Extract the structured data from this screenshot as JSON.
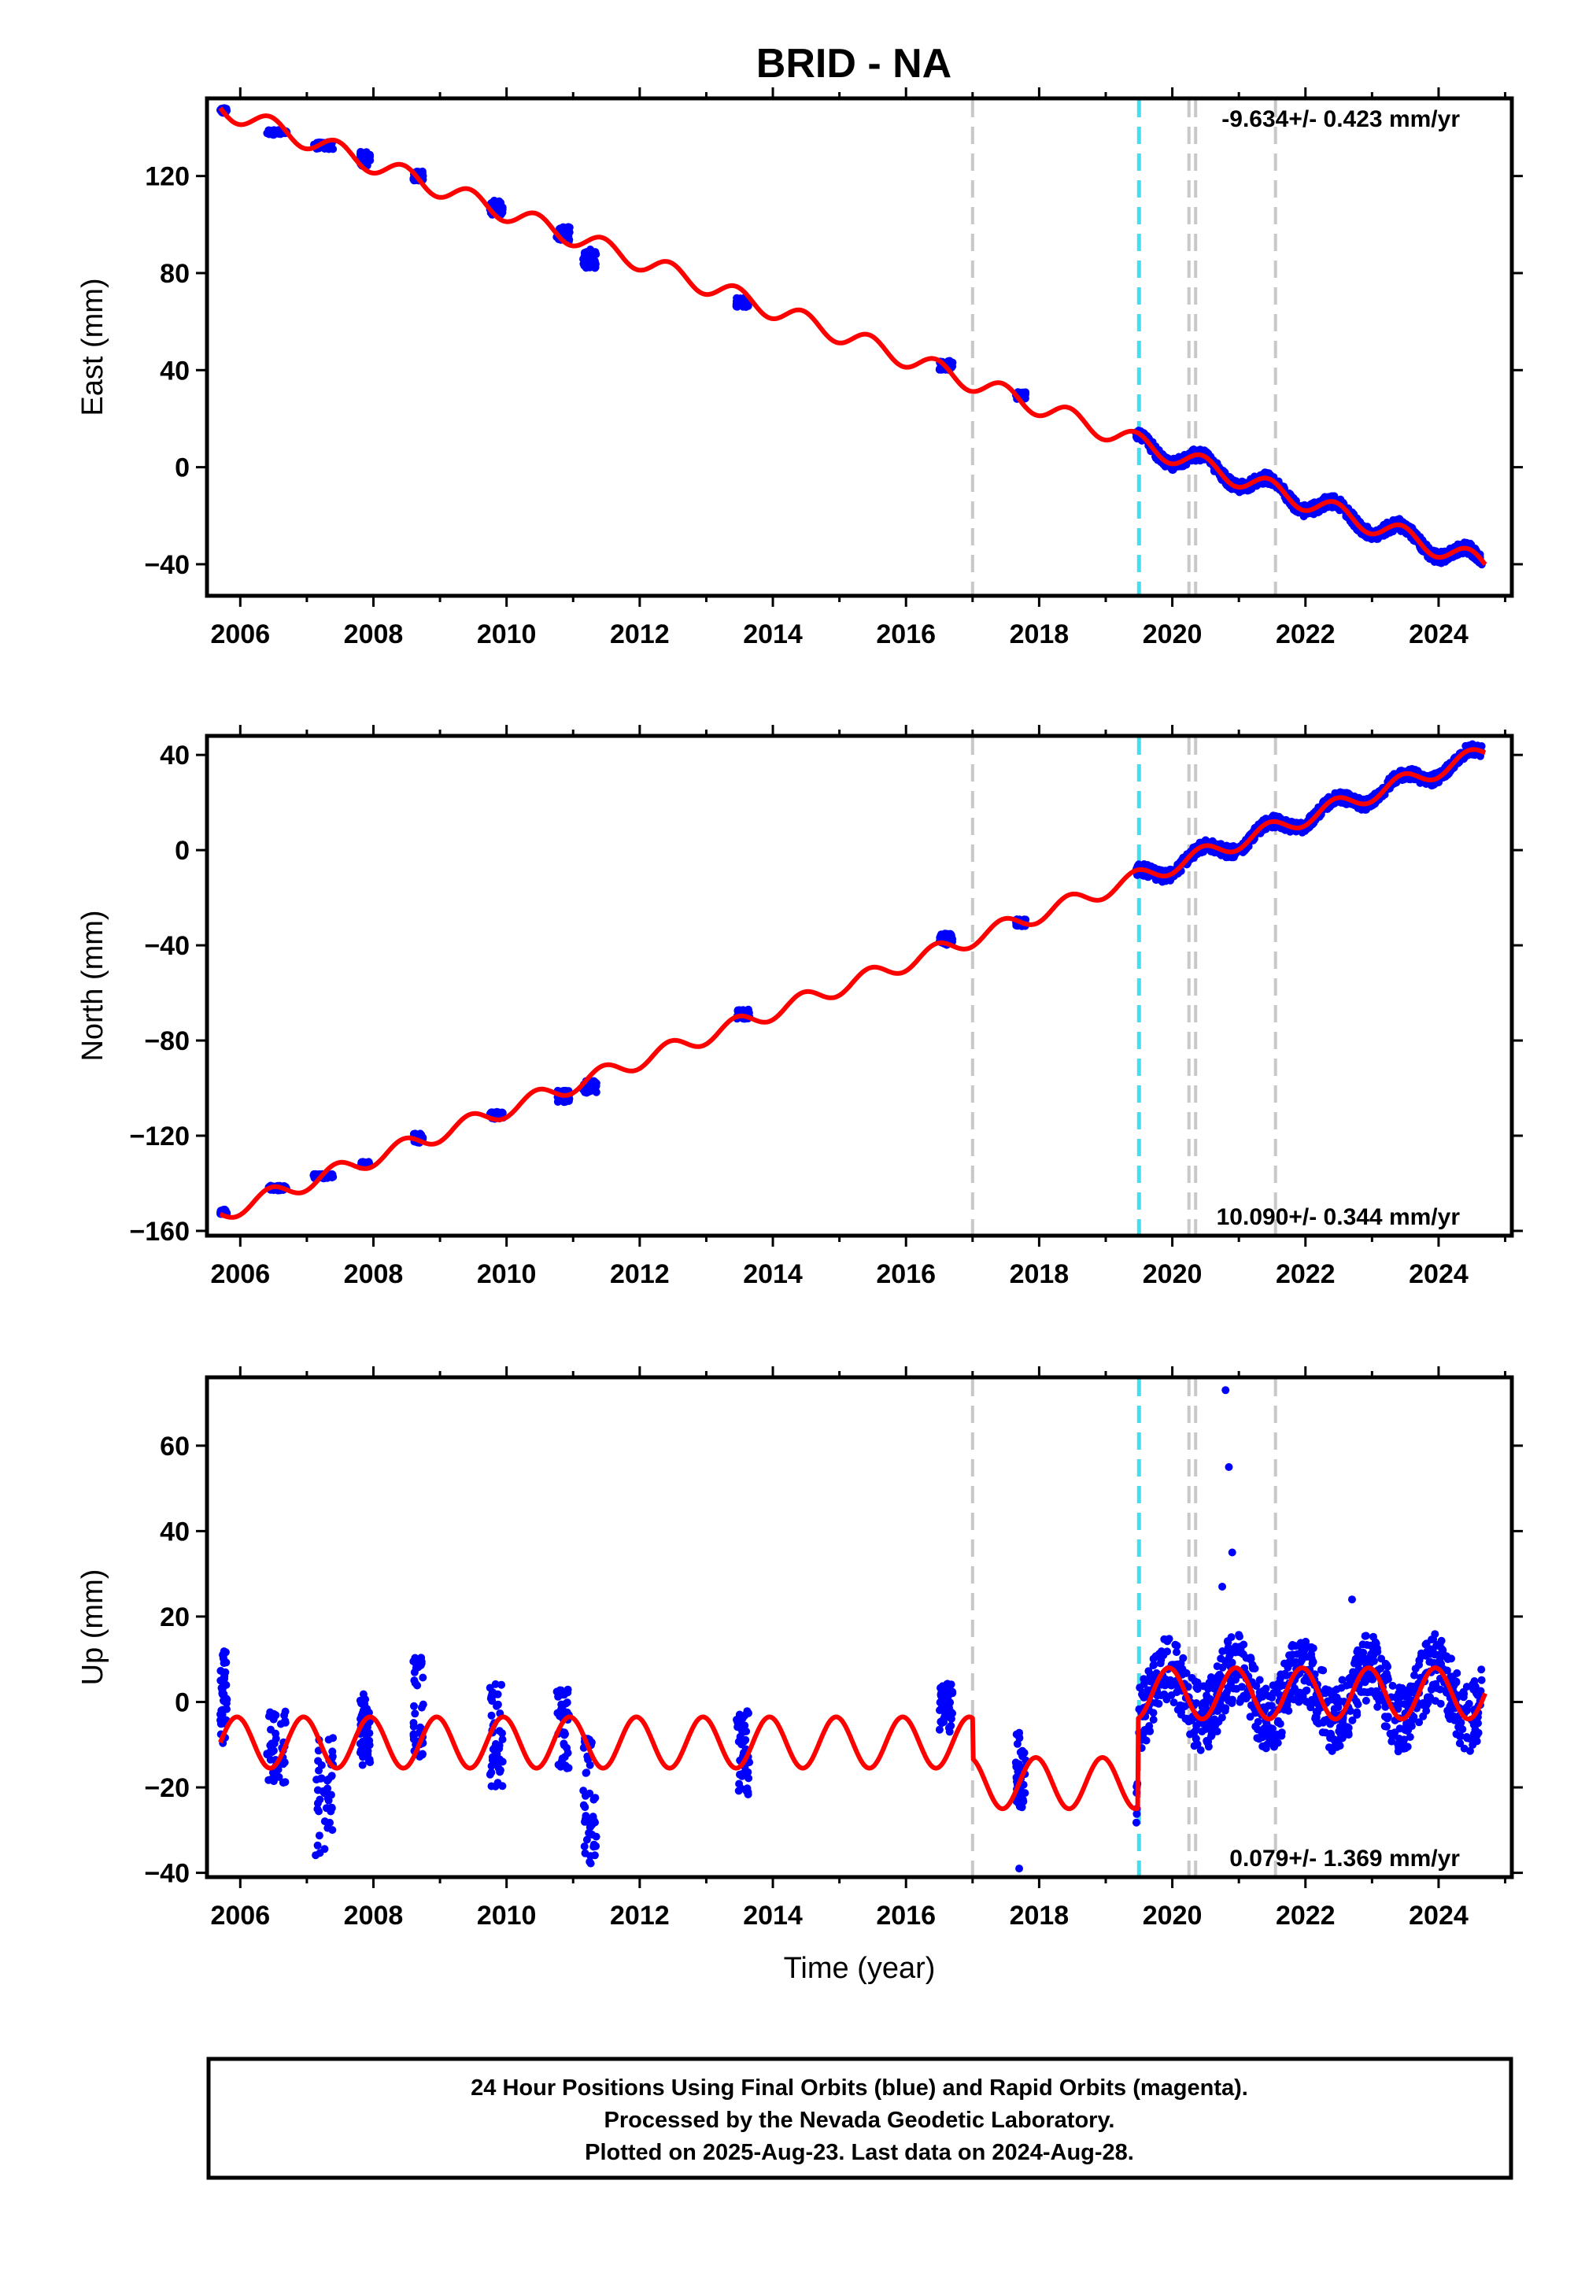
{
  "title": "BRID - NA",
  "xlabel": "Time (year)",
  "colors": {
    "data": "#0000ff",
    "model": "#ff0000",
    "event_gray": "#c8c8c8",
    "event_cyan": "#40e0f0"
  },
  "footer": {
    "line1": "24 Hour Positions Using Final Orbits (blue) and Rapid Orbits (magenta).",
    "line2": "Processed by the Nevada Geodetic Laboratory.",
    "line3": "Plotted on 2025-Aug-23. Last data on 2024-Aug-28."
  },
  "chart_data": [
    {
      "type": "scatter",
      "component": "East",
      "ylabel": "East (mm)",
      "rate": "-9.634+/- 0.423 mm/yr",
      "xlim": [
        2005.5,
        2025.1
      ],
      "ylim": [
        -53,
        152
      ],
      "yticks": [
        -40,
        0,
        40,
        80,
        120
      ],
      "xticks": [
        2006,
        2008,
        2010,
        2012,
        2014,
        2016,
        2018,
        2020,
        2022,
        2024
      ],
      "events_gray": [
        2017.0,
        2020.25,
        2020.35,
        2021.55
      ],
      "events_cyan": [
        2019.5
      ],
      "model": {
        "y0": 148,
        "x0": 2005.7,
        "segments": [
          {
            "from": 2005.7,
            "to": 2019.48,
            "slope": -10.0,
            "offset": 0
          },
          {
            "from": 2019.48,
            "to": 2024.7,
            "slope": -9.634,
            "offset": 0
          }
        ],
        "seasonal_amp": 4.0
      },
      "clusters": [
        {
          "x": [
            2005.7,
            2005.8
          ],
          "y": [
            146,
            148
          ]
        },
        {
          "x": [
            2006.4,
            2006.7
          ],
          "y": [
            137,
            139
          ]
        },
        {
          "x": [
            2007.1,
            2007.4
          ],
          "y": [
            131,
            134
          ]
        },
        {
          "x": [
            2007.8,
            2007.95
          ],
          "y": [
            124,
            130
          ]
        },
        {
          "x": [
            2008.6,
            2008.75
          ],
          "y": [
            118,
            122
          ]
        },
        {
          "x": [
            2009.75,
            2009.95
          ],
          "y": [
            104,
            110
          ]
        },
        {
          "x": [
            2010.75,
            2010.95
          ],
          "y": [
            93,
            99
          ]
        },
        {
          "x": [
            2011.15,
            2011.35
          ],
          "y": [
            82,
            90
          ]
        },
        {
          "x": [
            2013.45,
            2013.65
          ],
          "y": [
            66,
            70
          ]
        },
        {
          "x": [
            2016.5,
            2016.7
          ],
          "y": [
            40,
            44
          ]
        },
        {
          "x": [
            2017.65,
            2017.8
          ],
          "y": [
            28,
            31
          ]
        },
        {
          "x": [
            2019.45,
            2024.65
          ],
          "y": [
            9,
            -39
          ],
          "dense": true
        }
      ],
      "rate_position": "top-right"
    },
    {
      "type": "scatter",
      "component": "North",
      "ylabel": "North (mm)",
      "rate": "10.090+/- 0.344 mm/yr",
      "xlim": [
        2005.5,
        2025.1
      ],
      "ylim": [
        -162,
        48
      ],
      "yticks": [
        -160,
        -120,
        -80,
        -40,
        0,
        40
      ],
      "xticks": [
        2006,
        2008,
        2010,
        2012,
        2014,
        2016,
        2018,
        2020,
        2022,
        2024
      ],
      "events_gray": [
        2017.0,
        2020.25,
        2020.35,
        2021.55
      ],
      "events_cyan": [
        2019.5
      ],
      "model": {
        "y0": -153,
        "x0": 2005.7,
        "segments": [
          {
            "from": 2005.7,
            "to": 2019.48,
            "slope": 10.25,
            "offset": 0
          },
          {
            "from": 2019.48,
            "to": 2024.7,
            "slope": 10.09,
            "offset": 0
          }
        ],
        "seasonal_amp": 3.5
      },
      "clusters": [
        {
          "x": [
            2005.7,
            2005.8
          ],
          "y": [
            -153,
            -151
          ]
        },
        {
          "x": [
            2006.4,
            2006.7
          ],
          "y": [
            -143,
            -141
          ]
        },
        {
          "x": [
            2007.1,
            2007.4
          ],
          "y": [
            -138,
            -136
          ]
        },
        {
          "x": [
            2007.8,
            2007.95
          ],
          "y": [
            -133,
            -131
          ]
        },
        {
          "x": [
            2008.6,
            2008.75
          ],
          "y": [
            -123,
            -119
          ]
        },
        {
          "x": [
            2009.75,
            2009.95
          ],
          "y": [
            -113,
            -110
          ]
        },
        {
          "x": [
            2010.75,
            2010.95
          ],
          "y": [
            -106,
            -101
          ]
        },
        {
          "x": [
            2011.15,
            2011.35
          ],
          "y": [
            -102,
            -97
          ]
        },
        {
          "x": [
            2013.45,
            2013.65
          ],
          "y": [
            -71,
            -67
          ]
        },
        {
          "x": [
            2016.5,
            2016.7
          ],
          "y": [
            -40,
            -35
          ]
        },
        {
          "x": [
            2017.65,
            2017.8
          ],
          "y": [
            -32,
            -29
          ]
        },
        {
          "x": [
            2019.45,
            2024.65
          ],
          "y": [
            -12,
            40
          ],
          "dense": true
        }
      ],
      "rate_position": "bottom-right"
    },
    {
      "type": "scatter",
      "component": "Up",
      "ylabel": "Up (mm)",
      "rate": "0.079+/- 1.369 mm/yr",
      "xlim": [
        2005.5,
        2025.1
      ],
      "ylim": [
        -41,
        76
      ],
      "yticks": [
        -40,
        -20,
        0,
        20,
        40,
        60
      ],
      "xticks": [
        2006,
        2008,
        2010,
        2012,
        2014,
        2016,
        2018,
        2020,
        2022,
        2024
      ],
      "events_gray": [
        2017.0,
        2020.25,
        2020.35,
        2021.55
      ],
      "events_cyan": [
        2019.5
      ],
      "model": {
        "pieces": [
          {
            "from": 2005.7,
            "to": 2017.0,
            "mean": -9.5,
            "amp": 6.0
          },
          {
            "from": 2017.0,
            "to": 2019.48,
            "mean": -19.0,
            "amp": 6.0
          },
          {
            "from": 2019.48,
            "to": 2024.7,
            "mean": 2.0,
            "amp": 6.0
          }
        ]
      },
      "clusters": [
        {
          "x": [
            2005.7,
            2005.8
          ],
          "y": [
            -10,
            12
          ]
        },
        {
          "x": [
            2006.4,
            2006.7
          ],
          "y": [
            -20,
            -2
          ]
        },
        {
          "x": [
            2007.1,
            2007.4
          ],
          "y": [
            -36,
            -8
          ]
        },
        {
          "x": [
            2007.8,
            2007.95
          ],
          "y": [
            -15,
            2
          ]
        },
        {
          "x": [
            2008.6,
            2008.75
          ],
          "y": [
            -13,
            11
          ]
        },
        {
          "x": [
            2009.75,
            2009.95
          ],
          "y": [
            -20,
            5
          ]
        },
        {
          "x": [
            2010.75,
            2010.95
          ],
          "y": [
            -16,
            3
          ]
        },
        {
          "x": [
            2011.15,
            2011.35
          ],
          "y": [
            -38,
            -8
          ]
        },
        {
          "x": [
            2013.45,
            2013.65
          ],
          "y": [
            -22,
            -2
          ]
        },
        {
          "x": [
            2016.5,
            2016.7
          ],
          "y": [
            -8,
            6
          ]
        },
        {
          "x": [
            2017.65,
            2017.8
          ],
          "y": [
            -25,
            -7
          ]
        },
        {
          "x": [
            2019.45,
            2024.65
          ],
          "y": [
            -22,
            22
          ],
          "dense": true
        }
      ],
      "outliers": [
        [
          2017.7,
          -39
        ],
        [
          2020.8,
          73
        ],
        [
          2020.85,
          55
        ],
        [
          2020.9,
          35
        ],
        [
          2020.75,
          27
        ],
        [
          2022.7,
          24
        ]
      ],
      "rate_position": "bottom-right"
    }
  ]
}
